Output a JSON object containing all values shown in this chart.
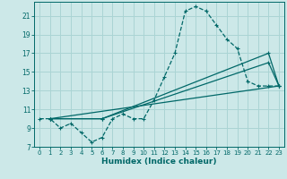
{
  "title": "",
  "xlabel": "Humidex (Indice chaleur)",
  "bg_color": "#cce8e8",
  "line_color": "#006868",
  "grid_color": "#aad4d4",
  "xlim": [
    -0.5,
    23.5
  ],
  "ylim": [
    7,
    22.5
  ],
  "xticks": [
    0,
    1,
    2,
    3,
    4,
    5,
    6,
    7,
    8,
    9,
    10,
    11,
    12,
    13,
    14,
    15,
    16,
    17,
    18,
    19,
    20,
    21,
    22,
    23
  ],
  "yticks": [
    7,
    9,
    11,
    13,
    15,
    17,
    19,
    21
  ],
  "curve1_x": [
    0,
    1,
    2,
    3,
    4,
    5,
    6,
    7,
    8,
    9,
    10,
    11,
    12,
    13,
    14,
    15,
    16,
    17,
    18,
    19,
    20,
    21,
    22,
    23
  ],
  "curve1_y": [
    10,
    10,
    9,
    9.5,
    8.5,
    7.5,
    8,
    10,
    10.5,
    10,
    10,
    12,
    14.5,
    17,
    21.5,
    22,
    21.5,
    20,
    18.5,
    17.5,
    14,
    13.5,
    13.5,
    13.5
  ],
  "curve2_x": [
    1,
    6,
    22,
    23
  ],
  "curve2_y": [
    10,
    10,
    17,
    13.5
  ],
  "curve3_x": [
    1,
    6,
    22,
    23
  ],
  "curve3_y": [
    10,
    10,
    16,
    13.5
  ],
  "curve4_x": [
    1,
    23
  ],
  "curve4_y": [
    10,
    13.5
  ]
}
